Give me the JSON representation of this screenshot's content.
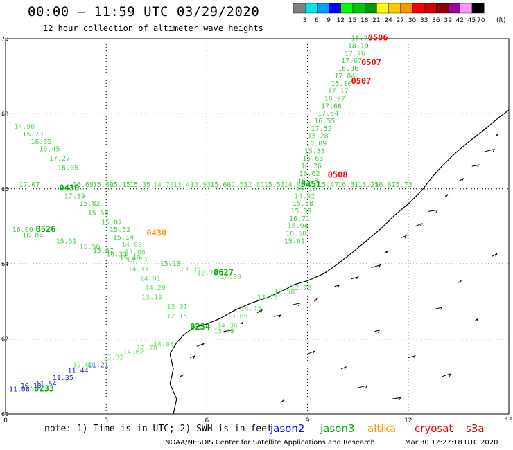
{
  "header": {
    "title": "00:00 – 11:59 UTC 03/29/2020",
    "subtitle": "12 hour collection of altimeter wave heights"
  },
  "colorbar": {
    "ticks": [
      "3",
      "6",
      "9",
      "12",
      "15",
      "18",
      "21",
      "24",
      "27",
      "30",
      "33",
      "36",
      "39",
      "42",
      "45",
      "70"
    ],
    "unit": "(ft)",
    "colors": [
      "#808080",
      "#00e6e6",
      "#00a0ff",
      "#0000ff",
      "#00ff00",
      "#00c800",
      "#009600",
      "#ffff00",
      "#ffc800",
      "#ff9600",
      "#ff0000",
      "#d20000",
      "#960000",
      "#a000a0",
      "#ff96ff",
      "#000000"
    ]
  },
  "axes": {
    "x_ticks": [
      "0",
      "3",
      "6",
      "9",
      "12",
      "15"
    ],
    "y_ticks": [
      "60",
      "62",
      "64",
      "66",
      "68",
      "70"
    ],
    "lon_range": [
      0,
      15
    ],
    "lat_range": [
      60,
      70
    ]
  },
  "satellites": [
    {
      "name": "jason2",
      "color": "#0000ff"
    },
    {
      "name": "jason3",
      "color": "#00b400"
    },
    {
      "name": "altika",
      "color": "#ff9600"
    },
    {
      "name": "cryosat",
      "color": "#ff0000"
    },
    {
      "name": "s3a",
      "color": "#c80000"
    }
  ],
  "footer": {
    "note": "note: 1) Time is in UTC; 2) SWH is in feet",
    "credit": "NOAA/NESDIS Center for Satellite Applications and Research",
    "timestamp": "Mar 30 12:27:18 UTC 2020"
  },
  "time_labels": [
    {
      "text": "0506",
      "lon": 10.8,
      "lat": 69.95,
      "sat": "cryosat"
    },
    {
      "text": "0507",
      "lon": 10.6,
      "lat": 69.3,
      "sat": "cryosat"
    },
    {
      "text": "0507",
      "lon": 10.3,
      "lat": 68.8,
      "sat": "cryosat"
    },
    {
      "text": "0508",
      "lon": 9.6,
      "lat": 66.3,
      "sat": "cryosat"
    },
    {
      "text": "0430",
      "lon": 4.2,
      "lat": 64.75,
      "sat": "altika"
    },
    {
      "text": "0451",
      "lon": 8.8,
      "lat": 66.05,
      "sat": "jason3"
    },
    {
      "text": "0430",
      "lon": 1.6,
      "lat": 65.95,
      "sat": "jason3"
    },
    {
      "text": "0526",
      "lon": 0.9,
      "lat": 64.85,
      "sat": "jason3"
    },
    {
      "text": "0627",
      "lon": 6.2,
      "lat": 63.7,
      "sat": "jason3"
    },
    {
      "text": "0234",
      "lon": 5.5,
      "lat": 62.25,
      "sat": "jason3"
    },
    {
      "text": "0233",
      "lon": 0.85,
      "lat": 60.6,
      "sat": "jason3"
    }
  ],
  "tracks": [
    {
      "name": "cryosat-northbound",
      "sat": "cryosat",
      "color_default": "#33dd33",
      "points": [
        {
          "lat": 69.95,
          "lon": 10.3,
          "swh": 16.79
        },
        {
          "lat": 69.75,
          "lon": 10.2,
          "swh": 18.19
        },
        {
          "lat": 69.55,
          "lon": 10.1,
          "swh": 17.76
        },
        {
          "lat": 69.35,
          "lon": 10.0,
          "swh": 17.67
        },
        {
          "lat": 69.15,
          "lon": 9.9,
          "swh": 16.96
        },
        {
          "lat": 68.95,
          "lon": 9.8,
          "swh": 17.84
        },
        {
          "lat": 68.75,
          "lon": 9.7,
          "swh": 15.1
        },
        {
          "lat": 68.55,
          "lon": 9.6,
          "swh": 17.17
        },
        {
          "lat": 68.35,
          "lon": 9.5,
          "swh": 16.97
        },
        {
          "lat": 68.15,
          "lon": 9.4,
          "swh": 17.66
        },
        {
          "lat": 67.95,
          "lon": 9.3,
          "swh": 17.64
        },
        {
          "lat": 67.75,
          "lon": 9.2,
          "swh": 16.55
        },
        {
          "lat": 67.55,
          "lon": 9.1,
          "swh": 17.52
        },
        {
          "lat": 67.35,
          "lon": 9.0,
          "swh": 15.28
        },
        {
          "lat": 67.15,
          "lon": 8.95,
          "swh": 16.09
        },
        {
          "lat": 66.95,
          "lon": 8.9,
          "swh": 15.33
        },
        {
          "lat": 66.75,
          "lon": 8.85,
          "swh": 15.63
        },
        {
          "lat": 66.55,
          "lon": 8.8,
          "swh": 16.26
        },
        {
          "lat": 66.35,
          "lon": 8.75,
          "swh": 16.62
        },
        {
          "lat": 66.15,
          "lon": 8.7,
          "swh": 16.23
        },
        {
          "lat": 65.95,
          "lon": 8.65,
          "swh": 16.11
        },
        {
          "lat": 65.75,
          "lon": 8.6,
          "swh": 14.92
        },
        {
          "lat": 65.55,
          "lon": 8.55,
          "swh": 15.58
        },
        {
          "lat": 65.35,
          "lon": 8.5,
          "swh": 15.59
        },
        {
          "lat": 65.15,
          "lon": 8.45,
          "swh": 16.71
        },
        {
          "lat": 64.95,
          "lon": 8.4,
          "swh": 15.94
        },
        {
          "lat": 64.75,
          "lon": 8.35,
          "swh": 16.58
        },
        {
          "lat": 64.55,
          "lon": 8.3,
          "swh": 15.61
        }
      ]
    },
    {
      "name": "jason3-eastbound-66N",
      "sat": "jason3",
      "color_default": "#33cc33",
      "points": [
        {
          "lat": 66.05,
          "lon": 0.4,
          "swh": 17.07
        },
        {
          "lat": 66.05,
          "lon": 2.0,
          "swh": 16.68
        },
        {
          "lat": 66.05,
          "lon": 2.6,
          "swh": 15.69
        },
        {
          "lat": 66.05,
          "lon": 3.1,
          "swh": 15.15
        },
        {
          "lat": 66.05,
          "lon": 3.7,
          "swh": 15.35
        },
        {
          "lat": 66.05,
          "lon": 4.4,
          "swh": 14.78
        },
        {
          "lat": 66.05,
          "lon": 5.0,
          "swh": 13.4
        },
        {
          "lat": 66.05,
          "lon": 5.5,
          "swh": 13.93
        },
        {
          "lat": 66.05,
          "lon": 6.1,
          "swh": 15.66
        },
        {
          "lat": 66.05,
          "lon": 6.6,
          "swh": 12.55
        },
        {
          "lat": 66.05,
          "lon": 7.1,
          "swh": 12.81
        },
        {
          "lat": 66.05,
          "lon": 7.7,
          "swh": 15.53
        },
        {
          "lat": 66.05,
          "lon": 8.3,
          "swh": 14.88
        },
        {
          "lat": 66.05,
          "lon": 9.3,
          "swh": 15.47
        },
        {
          "lat": 66.05,
          "lon": 9.9,
          "swh": 16.31
        },
        {
          "lat": 66.05,
          "lon": 10.5,
          "swh": 16.25
        },
        {
          "lat": 66.05,
          "lon": 11.0,
          "swh": 16.87
        },
        {
          "lat": 66.05,
          "lon": 11.5,
          "swh": 15.73
        }
      ]
    },
    {
      "name": "jason3-southeast",
      "sat": "jason3",
      "color_default": "#33cc33",
      "points": [
        {
          "lat": 67.6,
          "lon": 0.25,
          "swh": 14.9
        },
        {
          "lat": 67.4,
          "lon": 0.5,
          "swh": 15.7
        },
        {
          "lat": 67.2,
          "lon": 0.75,
          "swh": 16.85
        },
        {
          "lat": 67.0,
          "lon": 1.0,
          "swh": 16.45
        },
        {
          "lat": 66.75,
          "lon": 1.3,
          "swh": 17.27
        },
        {
          "lat": 66.5,
          "lon": 1.55,
          "swh": 16.05
        },
        {
          "lat": 65.75,
          "lon": 1.75,
          "swh": 17.39
        },
        {
          "lat": 65.55,
          "lon": 2.2,
          "swh": 15.82
        },
        {
          "lat": 65.3,
          "lon": 2.45,
          "swh": 15.58
        },
        {
          "lat": 65.05,
          "lon": 2.85,
          "swh": 15.07
        },
        {
          "lat": 64.85,
          "lon": 3.1,
          "swh": 15.52
        },
        {
          "lat": 64.65,
          "lon": 3.2,
          "swh": 15.14
        },
        {
          "lat": 64.45,
          "lon": 3.45,
          "swh": 14.88
        },
        {
          "lat": 64.25,
          "lon": 3.55,
          "swh": 14.86
        },
        {
          "lat": 64.05,
          "lon": 3.6,
          "swh": 13.79
        },
        {
          "lat": 63.8,
          "lon": 3.65,
          "swh": 14.11
        },
        {
          "lat": 63.55,
          "lon": 4.0,
          "swh": 14.01
        },
        {
          "lat": 63.3,
          "lon": 4.15,
          "swh": 14.29
        },
        {
          "lat": 63.05,
          "lon": 4.05,
          "swh": 13.19
        },
        {
          "lat": 62.8,
          "lon": 4.8,
          "swh": 13.01
        },
        {
          "lat": 62.55,
          "lon": 4.8,
          "swh": 12.15
        }
      ]
    },
    {
      "name": "jason3-64N",
      "sat": "jason3",
      "color_default": "#33cc33",
      "points": [
        {
          "lat": 64.85,
          "lon": 0.2,
          "swh": 16.0
        },
        {
          "lat": 64.7,
          "lon": 0.5,
          "swh": 16.04
        },
        {
          "lat": 64.55,
          "lon": 1.5,
          "swh": 15.51
        },
        {
          "lat": 64.4,
          "lon": 2.2,
          "swh": 15.56
        },
        {
          "lat": 64.3,
          "lon": 2.6,
          "swh": 15.67
        },
        {
          "lat": 64.2,
          "lon": 3.0,
          "swh": 16.33
        },
        {
          "lat": 64.1,
          "lon": 3.4,
          "swh": 15.4
        },
        {
          "lat": 63.95,
          "lon": 4.6,
          "swh": 15.18
        },
        {
          "lat": 63.8,
          "lon": 5.2,
          "swh": 13.35
        },
        {
          "lat": 63.7,
          "lon": 5.7,
          "swh": 12.7
        },
        {
          "lat": 63.6,
          "lon": 6.4,
          "swh": 14.8
        }
      ]
    },
    {
      "name": "jason2-southwest",
      "sat": "jason2",
      "color_default": "#2222dd",
      "points": [
        {
          "lat": 60.6,
          "lon": 0.1,
          "swh": 11.08
        },
        {
          "lat": 60.7,
          "lon": 0.45,
          "swh": 10.13
        },
        {
          "lat": 60.75,
          "lon": 0.9,
          "swh": 11.54
        },
        {
          "lat": 60.9,
          "lon": 1.4,
          "swh": 11.35
        },
        {
          "lat": 61.1,
          "lon": 1.85,
          "swh": 11.44
        },
        {
          "lat": 61.25,
          "lon": 2.45,
          "swh": 11.21
        }
      ]
    },
    {
      "name": "jason3-coastal",
      "sat": "jason3",
      "color_default": "#66ee66",
      "points": [
        {
          "lat": 61.25,
          "lon": 2.0,
          "swh": 12.0
        },
        {
          "lat": 61.45,
          "lon": 2.9,
          "swh": 13.32
        },
        {
          "lat": 61.6,
          "lon": 3.5,
          "swh": 14.62
        },
        {
          "lat": 61.7,
          "lon": 3.9,
          "swh": 12.7
        },
        {
          "lat": 61.8,
          "lon": 4.4,
          "swh": 14.08
        },
        {
          "lat": 62.15,
          "lon": 6.2,
          "swh": 13.48
        },
        {
          "lat": 62.3,
          "lon": 6.3,
          "swh": 14.36
        },
        {
          "lat": 62.55,
          "lon": 6.6,
          "swh": 13.85
        },
        {
          "lat": 62.75,
          "lon": 7.0,
          "swh": 14.43
        },
        {
          "lat": 63.05,
          "lon": 7.5,
          "swh": 13.76
        },
        {
          "lat": 63.2,
          "lon": 8.0,
          "swh": 12.58
        },
        {
          "lat": 63.3,
          "lon": 8.5,
          "swh": 12.78
        }
      ]
    }
  ]
}
